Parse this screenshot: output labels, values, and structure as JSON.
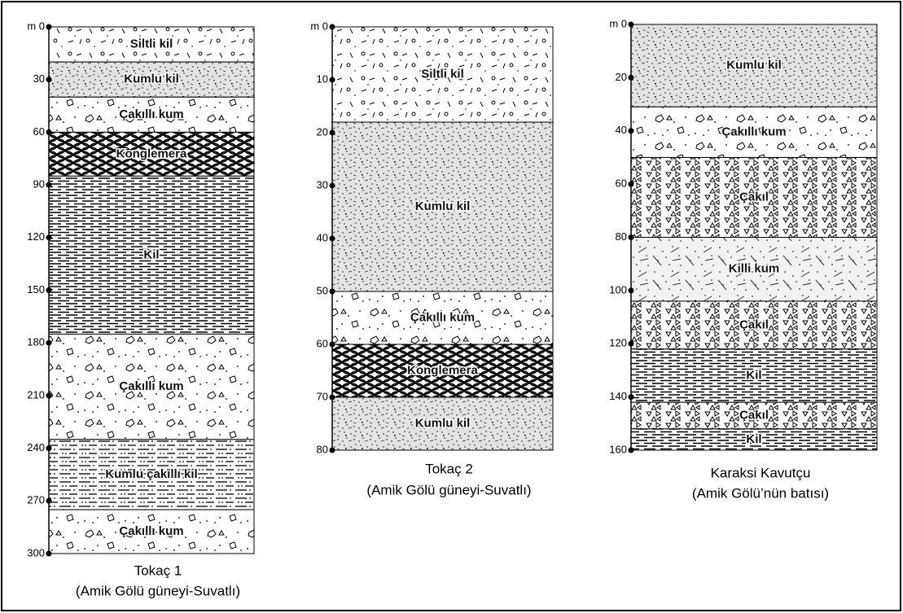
{
  "columns": [
    {
      "title": "Tokaç 1",
      "subtitle": "(Amik Gölü güneyi-Suvatlı)",
      "ylim": [
        0,
        300
      ],
      "yticks": [
        {
          "value": 0,
          "label": "m 0"
        },
        30,
        60,
        90,
        120,
        150,
        180,
        210,
        240,
        270,
        300
      ],
      "layers": [
        {
          "name": "Siltli kil",
          "top": 0,
          "bottom": 20
        },
        {
          "name": "Kumlu kil",
          "top": 20,
          "bottom": 40
        },
        {
          "name": "Çakıllı kum",
          "top": 40,
          "bottom": 60
        },
        {
          "name": "Konglemera",
          "top": 60,
          "bottom": 85
        },
        {
          "name": "Kil",
          "top": 85,
          "bottom": 175
        },
        {
          "name": "Çakıllı kum",
          "top": 175,
          "bottom": 235
        },
        {
          "name": "Kumlu çakıllı kil",
          "top": 235,
          "bottom": 275
        },
        {
          "name": "Çakıllı kum",
          "top": 275,
          "bottom": 300
        }
      ]
    },
    {
      "title": "Tokaç 2",
      "subtitle": "(Amik Gölü güneyi-Suvatlı)",
      "ylim": [
        0,
        80
      ],
      "yticks": [
        {
          "value": 0,
          "label": "m 0"
        },
        10,
        20,
        30,
        40,
        50,
        60,
        70,
        80
      ],
      "layers": [
        {
          "name": "Siltli kil",
          "top": 0,
          "bottom": 18
        },
        {
          "name": "Kumlu kil",
          "top": 18,
          "bottom": 50
        },
        {
          "name": "Çakıllı kum",
          "top": 50,
          "bottom": 60
        },
        {
          "name": "Konglemera",
          "top": 60,
          "bottom": 70
        },
        {
          "name": "Kumlu kil",
          "top": 70,
          "bottom": 80
        }
      ]
    },
    {
      "title": "Karaksi Kavutçu",
      "subtitle": "(Amik Gölü’nün batısı)",
      "ylim": [
        0,
        160
      ],
      "yticks": [
        {
          "value": 0,
          "label": "m 0"
        },
        20,
        40,
        60,
        80,
        100,
        120,
        140,
        160
      ],
      "layers": [
        {
          "name": "Kumlu kil",
          "top": 0,
          "bottom": 31
        },
        {
          "name": "Çakıllı kum",
          "top": 31,
          "bottom": 50
        },
        {
          "name": "Çakıl",
          "top": 50,
          "bottom": 80
        },
        {
          "name": "Killi kum",
          "top": 80,
          "bottom": 104
        },
        {
          "name": "Çakıl",
          "top": 104,
          "bottom": 122
        },
        {
          "name": "Kil",
          "top": 122,
          "bottom": 142
        },
        {
          "name": "Çakıl",
          "top": 142,
          "bottom": 152
        },
        {
          "name": "Kil",
          "top": 152,
          "bottom": 160
        }
      ]
    }
  ]
}
